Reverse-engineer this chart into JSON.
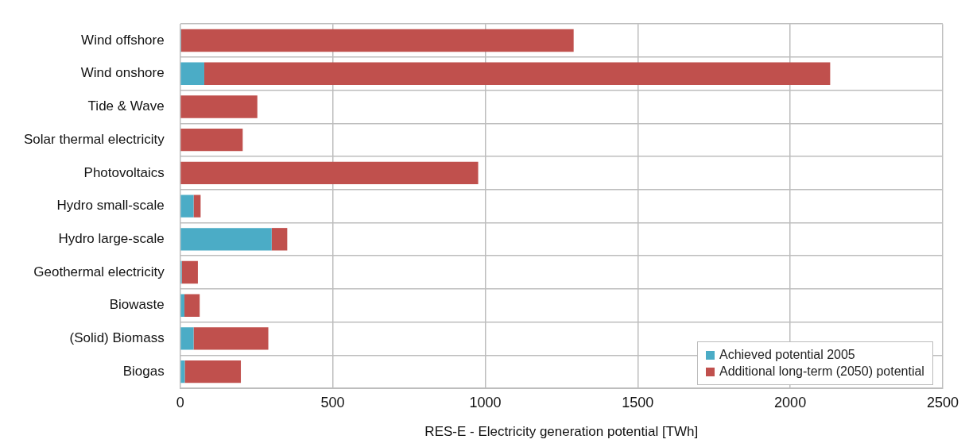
{
  "chart_data": {
    "type": "bar",
    "orientation": "horizontal",
    "stacked": true,
    "xlabel": "RES-E - Electricity generation potential [TWh]",
    "categories": [
      "Wind offshore",
      "Wind onshore",
      "Tide & Wave",
      "Solar thermal electricity",
      "Photovoltaics",
      "Hydro small-scale",
      "Hydro large-scale",
      "Geothermal electricity",
      "Biowaste",
      "(Solid) Biomass",
      "Biogas"
    ],
    "series": [
      {
        "name": "Achieved potential 2005",
        "color": "#4bacc6",
        "values": [
          3,
          79,
          0,
          0,
          null,
          44,
          300,
          5,
          14,
          44,
          15
        ]
      },
      {
        "name": "Additional long-term (2050) potential",
        "color": "#c0504d",
        "values": [
          1287,
          2052,
          253,
          205,
          977,
          23,
          51,
          53,
          50,
          245,
          184
        ]
      }
    ],
    "xlim": [
      0,
      2500
    ],
    "xticks": [
      0,
      500,
      1000,
      1500,
      2000,
      2500
    ],
    "grid": true,
    "legend": "bottom right"
  }
}
